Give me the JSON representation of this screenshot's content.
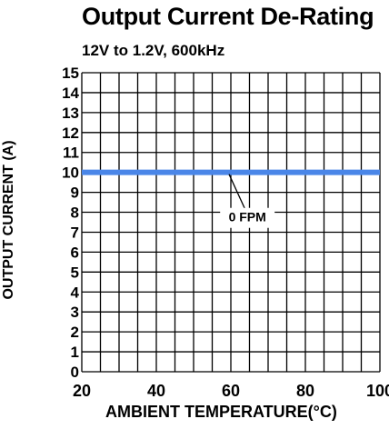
{
  "chart_data": {
    "type": "line",
    "title": "Output Current De-Rating",
    "subtitle": "12V to 1.2V, 600kHz",
    "xlabel": "AMBIENT TEMPERATURE(°C)",
    "ylabel": "OUTPUT CURRENT (A)",
    "xlim": [
      20,
      100
    ],
    "ylim": [
      0,
      15
    ],
    "x_ticks": [
      20,
      40,
      60,
      80,
      100
    ],
    "y_ticks": [
      0,
      1,
      2,
      3,
      4,
      5,
      6,
      7,
      8,
      9,
      10,
      11,
      12,
      13,
      14,
      15
    ],
    "grid": true,
    "series": [
      {
        "name": "0 FPM",
        "color": "#4a86e8",
        "x": [
          20,
          100
        ],
        "y": [
          10,
          10
        ]
      }
    ],
    "annotations": [
      {
        "text": "0 FPM",
        "x": 62,
        "y": 10
      }
    ]
  }
}
